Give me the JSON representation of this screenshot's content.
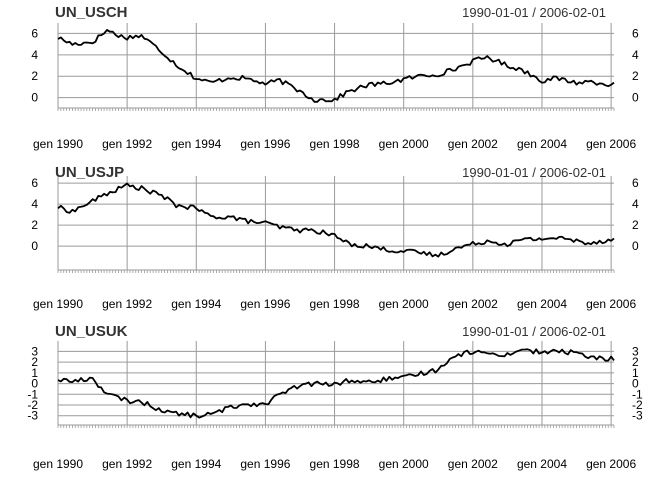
{
  "chart_data": [
    {
      "type": "line",
      "title": "UN_USCH",
      "date_range_label": "1990-01-01 / 2006-02-01",
      "x_start": "1990-01-01",
      "x_end": "2006-02-01",
      "frequency": "monthly",
      "ylim": [
        -0.5,
        6.6
      ],
      "y_ticks": [
        0,
        2,
        4,
        6
      ],
      "x_tick_labels": [
        "gen 1990",
        "gen 1992",
        "gen 1994",
        "gen 1996",
        "gen 1998",
        "gen 2000",
        "gen 2002",
        "gen 2004",
        "gen 2006"
      ],
      "grid": true,
      "x_knots": [
        "1990-01",
        "1990-06",
        "1991-01",
        "1991-06",
        "1991-12",
        "1992-06",
        "1993-01",
        "1993-06",
        "1994-01",
        "1994-06",
        "1995-01",
        "1995-06",
        "1996-01",
        "1996-06",
        "1997-01",
        "1997-06",
        "1998-01",
        "1998-06",
        "1999-01",
        "1999-06",
        "2000-01",
        "2000-06",
        "2001-01",
        "2001-06",
        "2002-01",
        "2002-06",
        "2003-01",
        "2003-06",
        "2004-01",
        "2004-06",
        "2005-01",
        "2005-06",
        "2006-02"
      ],
      "y_knots": [
        5.6,
        5.0,
        5.2,
        6.3,
        5.6,
        5.8,
        4.3,
        3.1,
        1.8,
        1.4,
        1.9,
        1.8,
        1.3,
        1.6,
        0.6,
        -0.2,
        -0.2,
        0.6,
        1.2,
        1.3,
        1.7,
        2.0,
        2.2,
        2.6,
        3.4,
        3.8,
        3.0,
        2.6,
        1.6,
        1.8,
        1.4,
        1.5,
        1.2
      ]
    },
    {
      "type": "line",
      "title": "UN_USJP",
      "date_range_label": "1990-01-01 / 2006-02-01",
      "x_start": "1990-01-01",
      "x_end": "2006-02-01",
      "frequency": "monthly",
      "ylim": [
        -1.8,
        6.3
      ],
      "y_ticks": [
        0,
        2,
        4,
        6
      ],
      "x_tick_labels": [
        "gen 1990",
        "gen 1992",
        "gen 1994",
        "gen 1996",
        "gen 1998",
        "gen 2000",
        "gen 2002",
        "gen 2004",
        "gen 2006"
      ],
      "grid": true,
      "x_knots": [
        "1990-01",
        "1990-06",
        "1991-01",
        "1991-06",
        "1992-01",
        "1992-06",
        "1993-01",
        "1993-06",
        "1994-01",
        "1994-06",
        "1995-01",
        "1995-06",
        "1996-01",
        "1996-06",
        "1997-01",
        "1997-06",
        "1998-01",
        "1998-06",
        "1999-01",
        "1999-06",
        "2000-01",
        "2000-06",
        "2001-01",
        "2001-06",
        "2002-01",
        "2002-06",
        "2003-01",
        "2003-06",
        "2004-01",
        "2004-06",
        "2005-01",
        "2005-06",
        "2006-02"
      ],
      "y_knots": [
        3.7,
        3.3,
        4.3,
        5.0,
        5.8,
        5.5,
        4.8,
        3.9,
        3.6,
        2.8,
        2.8,
        2.4,
        2.2,
        1.8,
        1.5,
        1.5,
        1.0,
        0.2,
        0.0,
        -0.3,
        -0.5,
        -0.6,
        -0.9,
        -0.3,
        0.2,
        0.5,
        0.2,
        0.6,
        0.7,
        0.8,
        0.5,
        0.3,
        0.7
      ]
    },
    {
      "type": "line",
      "title": "UN_USUK",
      "date_range_label": "1990-01-01 / 2006-02-01",
      "x_start": "1990-01-01",
      "x_end": "2006-02-01",
      "frequency": "monthly",
      "ylim": [
        -3.4,
        3.6
      ],
      "y_ticks": [
        -3,
        -2,
        -1,
        0,
        1,
        2,
        3
      ],
      "x_tick_labels": [
        "gen 1990",
        "gen 1992",
        "gen 1994",
        "gen 1996",
        "gen 1998",
        "gen 2000",
        "gen 2002",
        "gen 2004",
        "gen 2006"
      ],
      "grid": true,
      "x_knots": [
        "1990-01",
        "1990-06",
        "1991-01",
        "1991-06",
        "1992-01",
        "1992-06",
        "1993-01",
        "1993-06",
        "1994-01",
        "1994-06",
        "1995-01",
        "1995-06",
        "1996-01",
        "1996-06",
        "1997-01",
        "1997-06",
        "1998-01",
        "1998-06",
        "1999-01",
        "1999-06",
        "2000-01",
        "2000-06",
        "2001-01",
        "2001-06",
        "2002-01",
        "2002-06",
        "2003-01",
        "2003-06",
        "2004-01",
        "2004-06",
        "2005-01",
        "2005-06",
        "2006-02"
      ],
      "y_knots": [
        0.4,
        0.2,
        0.5,
        -1.0,
        -1.6,
        -1.7,
        -2.5,
        -2.8,
        -3.0,
        -2.9,
        -2.2,
        -1.9,
        -1.9,
        -1.0,
        -0.2,
        0.0,
        -0.1,
        0.3,
        0.1,
        0.4,
        0.5,
        0.9,
        1.3,
        2.6,
        3.0,
        2.8,
        2.7,
        3.2,
        2.9,
        3.0,
        2.9,
        2.4,
        2.3
      ]
    }
  ]
}
